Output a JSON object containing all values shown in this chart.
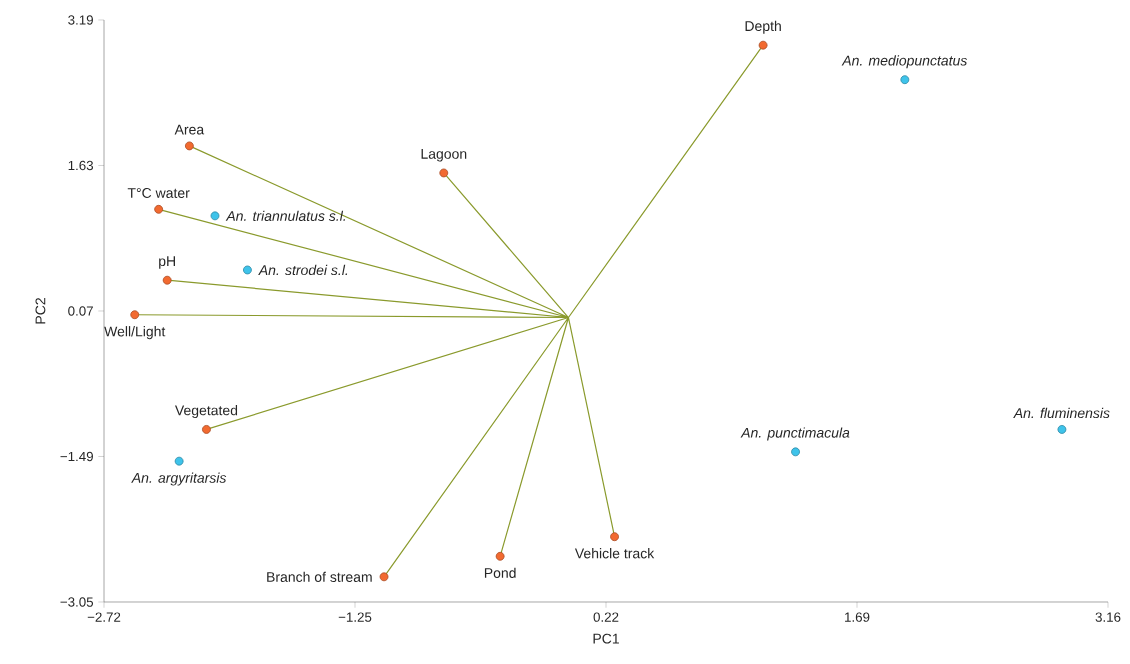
{
  "chart_data": {
    "type": "scatter",
    "xlabel": "PC1",
    "ylabel": "PC2",
    "xlim": [
      -2.72,
      3.16
    ],
    "ylim": [
      -3.05,
      3.19
    ],
    "xticks": [
      {
        "value": -2.72,
        "label": "−2.72"
      },
      {
        "value": -1.25,
        "label": "−1.25"
      },
      0.22,
      1.69,
      3.16
    ],
    "yticks": [
      {
        "value": -3.05,
        "label": "−3.05"
      },
      {
        "value": -1.49,
        "label": "−1.49"
      },
      0.07,
      1.63,
      3.19
    ],
    "series": [
      {
        "type": "line",
        "marker": "none",
        "color": "#8a9a2c",
        "x": [
          0,
          1.14,
          null,
          0,
          -2.22,
          null,
          0,
          -0.73,
          null,
          0,
          -2.4,
          null,
          0,
          -2.35,
          null,
          0,
          -2.54,
          null,
          0,
          -2.12,
          null,
          0,
          -1.08,
          null,
          0,
          -0.4,
          null,
          0,
          0.27
        ],
        "values": [
          0,
          2.92,
          null,
          0,
          1.84,
          null,
          0,
          1.55,
          null,
          0,
          1.16,
          null,
          0,
          0.4,
          null,
          0,
          0.03,
          null,
          0,
          -1.2,
          null,
          0,
          -2.78,
          null,
          0,
          -2.56,
          null,
          0,
          -2.35
        ]
      },
      {
        "marker": "circle",
        "color": "#f26a30",
        "x": [
          1.14,
          -2.22,
          -0.73,
          -2.4,
          -2.35,
          -2.54,
          -2.12,
          -1.08,
          -0.4,
          0.27
        ],
        "values": [
          2.92,
          1.84,
          1.55,
          1.16,
          0.4,
          0.03,
          -1.2,
          -2.78,
          -2.56,
          -2.35
        ]
      },
      {
        "marker": "circle",
        "color": "#3ec3ea",
        "name": "An. mediopunctatus",
        "x": [
          1.97
        ],
        "values": [
          2.55
        ]
      },
      {
        "marker": "circle",
        "color": "#3ec3ea",
        "name": "An. triannulatus s.l.",
        "x": [
          -2.07
        ],
        "values": [
          1.09
        ]
      },
      {
        "marker": "circle",
        "color": "#3ec3ea",
        "name": "An. strodei s.l.",
        "x": [
          -1.88
        ],
        "values": [
          0.51
        ]
      },
      {
        "marker": "circle",
        "color": "#3ec3ea",
        "name": "An. argyritarsis",
        "x": [
          -2.28
        ],
        "values": [
          -1.54
        ]
      },
      {
        "marker": "circle",
        "color": "#3ec3ea",
        "name": "An. punctimacula",
        "x": [
          1.33
        ],
        "values": [
          -1.44
        ]
      },
      {
        "marker": "circle",
        "color": "#3ec3ea",
        "name": "An. fluminensis",
        "x": [
          2.89
        ],
        "values": [
          -1.2
        ]
      }
    ],
    "annotations": [
      {
        "text": "Depth",
        "x": 1.14,
        "y": 2.92
      },
      {
        "text": "Area",
        "x": -2.22,
        "y": 1.84
      },
      {
        "text": "Lagoon",
        "x": -0.73,
        "y": 1.55
      },
      {
        "text": "T°C water",
        "x": -2.4,
        "y": 1.16
      },
      {
        "text": "pH",
        "x": -2.35,
        "y": 0.4
      },
      {
        "text": "Well/Light",
        "x": -2.54,
        "y": 0.03
      },
      {
        "text": "Vegetated",
        "x": -2.12,
        "y": -1.2
      },
      {
        "text": "Branch of stream",
        "x": -1.08,
        "y": -2.78
      },
      {
        "text": "Pond",
        "x": -0.4,
        "y": -2.56
      },
      {
        "text": "Vehicle track",
        "x": 0.27,
        "y": -2.35
      }
    ]
  }
}
